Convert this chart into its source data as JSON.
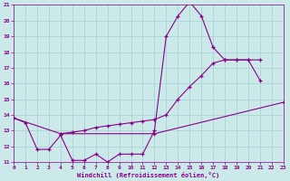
{
  "xlabel": "Windchill (Refroidissement éolien,°C)",
  "xlim": [
    0,
    23
  ],
  "ylim": [
    11,
    21
  ],
  "xticks": [
    0,
    1,
    2,
    3,
    4,
    5,
    6,
    7,
    8,
    9,
    10,
    11,
    12,
    13,
    14,
    15,
    16,
    17,
    18,
    19,
    20,
    21,
    22,
    23
  ],
  "yticks": [
    11,
    12,
    13,
    14,
    15,
    16,
    17,
    18,
    19,
    20,
    21
  ],
  "bg_color": "#cce9e9",
  "grid_color": "#aad4d4",
  "line_color": "#880088",
  "line1_x": [
    0,
    1,
    2,
    3,
    4,
    5,
    6,
    7,
    8,
    9,
    10,
    11,
    12,
    13,
    14,
    15,
    16,
    17,
    18,
    19,
    20,
    21
  ],
  "line1_y": [
    13.8,
    13.5,
    11.8,
    11.8,
    12.7,
    11.1,
    11.1,
    11.5,
    11.0,
    11.5,
    11.5,
    11.5,
    13.0,
    19.0,
    20.3,
    21.2,
    20.3,
    18.3,
    17.5,
    17.5,
    17.5,
    16.2
  ],
  "line2_x": [
    4,
    5,
    6,
    7,
    8,
    9,
    10,
    11,
    12,
    13,
    14,
    15,
    16,
    17,
    18,
    19,
    20,
    21
  ],
  "line2_y": [
    12.8,
    12.9,
    13.0,
    13.2,
    13.3,
    13.4,
    13.5,
    13.6,
    13.7,
    14.0,
    15.0,
    15.8,
    16.5,
    17.3,
    17.5,
    17.5,
    17.5,
    17.5
  ],
  "line3_x": [
    0,
    4,
    12,
    23
  ],
  "line3_y": [
    13.8,
    12.8,
    12.8,
    14.8
  ]
}
